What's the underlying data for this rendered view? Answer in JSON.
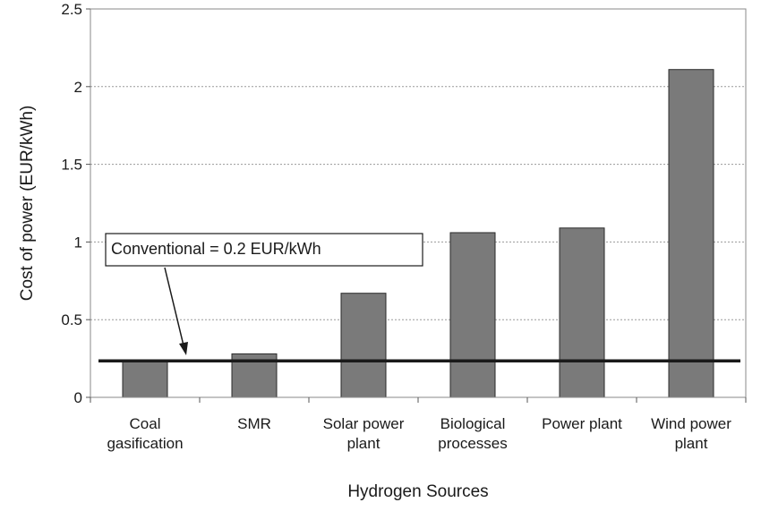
{
  "chart_data": {
    "type": "bar",
    "categories": [
      [
        "Coal",
        "gasification"
      ],
      [
        "SMR"
      ],
      [
        "Solar power",
        "plant"
      ],
      [
        "Biological",
        "processes"
      ],
      [
        "Power plant"
      ],
      [
        "Wind power",
        "plant"
      ]
    ],
    "values": [
      0.24,
      0.28,
      0.67,
      1.06,
      1.09,
      2.11
    ],
    "title": "",
    "xlabel": "Hydrogen Sources",
    "ylabel": "Cost of power   (EUR/kWh)",
    "ylim": [
      0,
      2.5
    ],
    "yticks": [
      "0",
      "0.5",
      "1",
      "1.5",
      "2",
      "2.5"
    ],
    "grid": true,
    "reference_line": {
      "value": 0.235,
      "label": "Conventional = 0.2 EUR/kWh"
    },
    "colors": {
      "bar": "#7a7a7a",
      "bar_border": "#2a2a2a",
      "reference_line": "#1a1a1a",
      "grid": "#9a9a9a"
    }
  }
}
